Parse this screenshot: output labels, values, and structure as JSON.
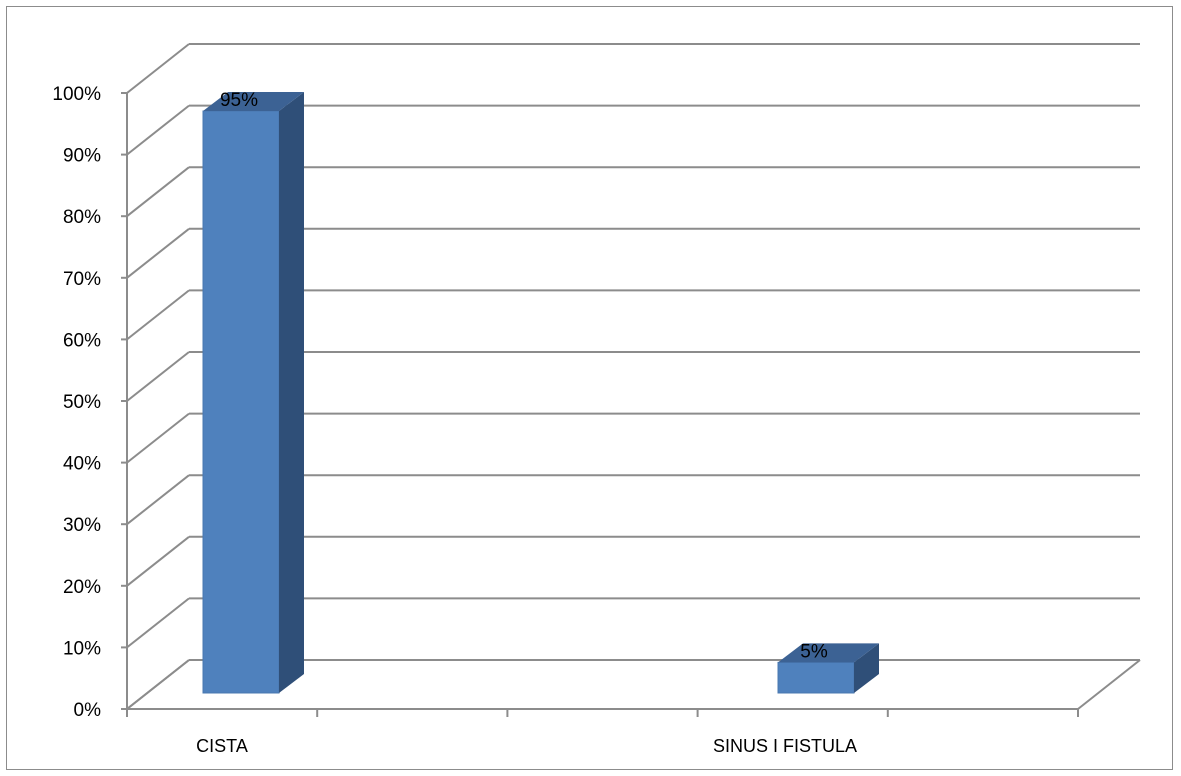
{
  "chart_data": {
    "type": "bar",
    "style": "3d-clustered-column",
    "categories": [
      "CISTA",
      "SINUS I FISTULA"
    ],
    "series": [
      {
        "values": [
          95,
          5
        ],
        "labels": [
          "95%",
          "5%"
        ]
      }
    ],
    "ylim": [
      0,
      100
    ],
    "y_ticks": [
      "0%",
      "10%",
      "20%",
      "30%",
      "40%",
      "50%",
      "60%",
      "70%",
      "80%",
      "90%",
      "100%"
    ],
    "grid": true,
    "legend": "none",
    "colors": {
      "bar_front": "#4f81bd",
      "bar_side": "#2f4f78",
      "bar_top": "#3c6294",
      "gridline": "#8c8c8c"
    }
  }
}
